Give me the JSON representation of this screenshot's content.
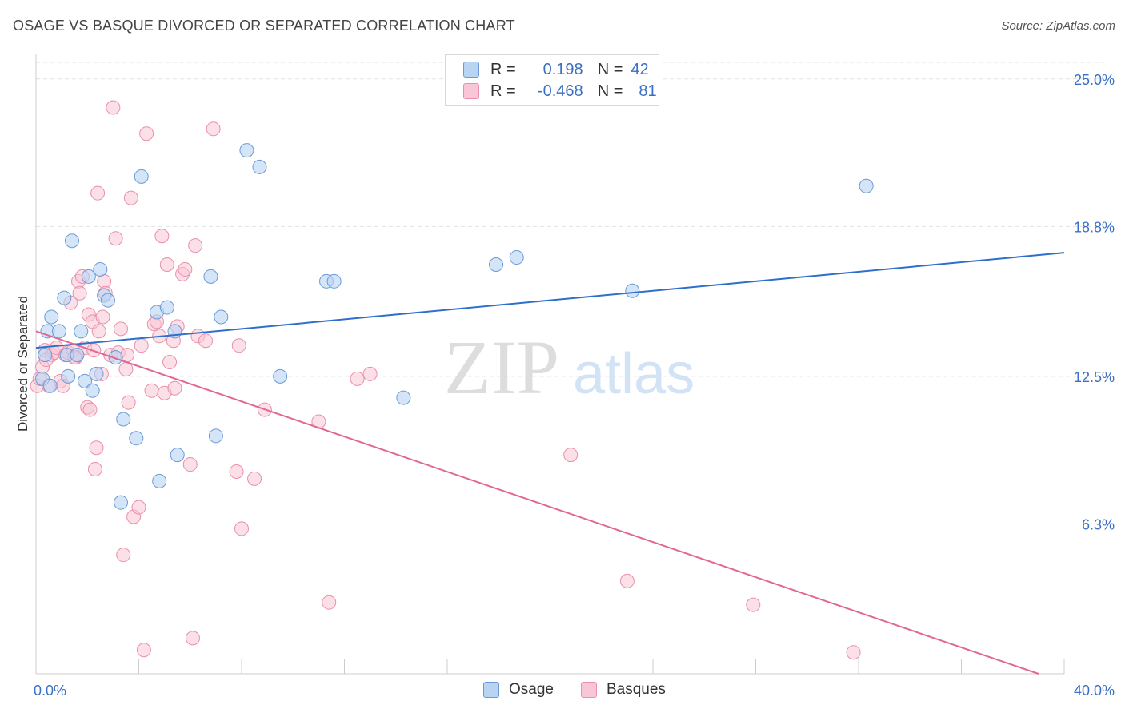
{
  "header": {
    "title": "OSAGE VS BASQUE DIVORCED OR SEPARATED CORRELATION CHART",
    "source": "Source: ZipAtlas.com"
  },
  "watermark": {
    "zip": "ZIP",
    "atlas": "atlas"
  },
  "legend": {
    "osage": {
      "r_label": "R =",
      "r_value": "0.198",
      "n_label": "N =",
      "n_value": "42"
    },
    "basques": {
      "r_label": "R =",
      "r_value": "-0.468",
      "n_label": "N =",
      "n_value": "81"
    }
  },
  "bottom_legend": {
    "osage": "Osage",
    "basques": "Basques"
  },
  "colors": {
    "osage_fill": "#b9d3f3",
    "osage_stroke": "#6a9bd8",
    "osage_line": "#2e6fcb",
    "basques_fill": "#f8c6d6",
    "basques_stroke": "#e98fac",
    "basques_line": "#e06892",
    "tick_label": "#3a6fc4",
    "grid": "#e2e2e2"
  },
  "chart_data": {
    "type": "scatter",
    "title": "OSAGE VS BASQUE DIVORCED OR SEPARATED CORRELATION CHART",
    "xlabel": "",
    "ylabel": "Divorced or Separated",
    "xlim": [
      0,
      40
    ],
    "ylim": [
      0,
      25.9
    ],
    "y_ticks": [
      6.3,
      12.5,
      18.8,
      25.0
    ],
    "y_tick_labels": [
      "6.3%",
      "12.5%",
      "18.8%",
      "25.0%"
    ],
    "x_tick_labels": [
      "0.0%",
      "40.0%"
    ],
    "series": [
      {
        "name": "Osage",
        "r": 0.198,
        "n": 42,
        "trend": {
          "x": [
            0.0,
            40.0
          ],
          "y": [
            13.7,
            17.7
          ]
        },
        "points": [
          [
            0.25,
            12.4
          ],
          [
            0.35,
            13.4
          ],
          [
            0.45,
            14.4
          ],
          [
            0.55,
            12.1
          ],
          [
            0.6,
            15.0
          ],
          [
            0.9,
            14.4
          ],
          [
            1.1,
            15.8
          ],
          [
            1.2,
            13.4
          ],
          [
            1.25,
            12.5
          ],
          [
            1.4,
            18.2
          ],
          [
            1.6,
            13.4
          ],
          [
            1.75,
            14.4
          ],
          [
            1.9,
            12.3
          ],
          [
            2.05,
            16.7
          ],
          [
            2.2,
            11.9
          ],
          [
            2.35,
            12.6
          ],
          [
            2.5,
            17.0
          ],
          [
            2.65,
            15.9
          ],
          [
            2.8,
            15.7
          ],
          [
            3.1,
            13.3
          ],
          [
            3.3,
            7.2
          ],
          [
            3.4,
            10.7
          ],
          [
            3.9,
            9.9
          ],
          [
            4.1,
            20.9
          ],
          [
            4.7,
            15.2
          ],
          [
            4.8,
            8.1
          ],
          [
            5.1,
            15.4
          ],
          [
            5.4,
            14.4
          ],
          [
            5.5,
            9.2
          ],
          [
            6.8,
            16.7
          ],
          [
            7.0,
            10.0
          ],
          [
            7.2,
            15.0
          ],
          [
            8.2,
            22.0
          ],
          [
            8.7,
            21.3
          ],
          [
            9.5,
            12.5
          ],
          [
            11.3,
            16.5
          ],
          [
            11.6,
            16.5
          ],
          [
            14.3,
            11.6
          ],
          [
            17.9,
            17.2
          ],
          [
            18.7,
            17.5
          ],
          [
            23.2,
            16.1
          ],
          [
            32.3,
            20.5
          ]
        ]
      },
      {
        "name": "Basques",
        "r": -0.468,
        "n": 81,
        "trend": {
          "x": [
            0.0,
            39.0
          ],
          "y": [
            14.4,
            0.0
          ]
        },
        "points": [
          [
            0.05,
            12.1
          ],
          [
            0.15,
            12.4
          ],
          [
            0.25,
            12.9
          ],
          [
            0.35,
            13.6
          ],
          [
            0.5,
            12.1
          ],
          [
            0.6,
            13.4
          ],
          [
            0.7,
            13.5
          ],
          [
            0.8,
            13.7
          ],
          [
            0.95,
            12.3
          ],
          [
            1.05,
            12.1
          ],
          [
            1.15,
            13.4
          ],
          [
            1.25,
            13.5
          ],
          [
            1.35,
            15.6
          ],
          [
            1.45,
            13.6
          ],
          [
            1.55,
            13.3
          ],
          [
            1.65,
            16.5
          ],
          [
            1.7,
            16.0
          ],
          [
            1.8,
            16.7
          ],
          [
            1.9,
            13.7
          ],
          [
            2.0,
            11.2
          ],
          [
            2.05,
            15.1
          ],
          [
            2.1,
            11.1
          ],
          [
            2.2,
            14.8
          ],
          [
            2.25,
            13.6
          ],
          [
            2.3,
            8.6
          ],
          [
            2.35,
            9.5
          ],
          [
            2.4,
            20.2
          ],
          [
            2.45,
            14.4
          ],
          [
            2.55,
            12.6
          ],
          [
            2.6,
            15.0
          ],
          [
            2.65,
            16.5
          ],
          [
            2.7,
            16.0
          ],
          [
            2.9,
            13.4
          ],
          [
            3.0,
            23.8
          ],
          [
            3.1,
            18.3
          ],
          [
            3.2,
            13.5
          ],
          [
            3.3,
            14.5
          ],
          [
            3.4,
            5.0
          ],
          [
            3.5,
            12.8
          ],
          [
            3.6,
            11.4
          ],
          [
            3.7,
            20.0
          ],
          [
            3.8,
            6.6
          ],
          [
            4.0,
            7.0
          ],
          [
            4.1,
            13.8
          ],
          [
            4.2,
            1.0
          ],
          [
            4.3,
            22.7
          ],
          [
            4.5,
            11.9
          ],
          [
            4.6,
            14.7
          ],
          [
            4.7,
            14.8
          ],
          [
            4.8,
            14.2
          ],
          [
            4.9,
            18.4
          ],
          [
            5.0,
            11.8
          ],
          [
            5.1,
            17.2
          ],
          [
            5.2,
            13.1
          ],
          [
            5.35,
            14.0
          ],
          [
            5.5,
            14.6
          ],
          [
            5.7,
            16.8
          ],
          [
            5.8,
            17.0
          ],
          [
            6.0,
            8.8
          ],
          [
            6.1,
            1.5
          ],
          [
            6.2,
            18.0
          ],
          [
            6.3,
            14.2
          ],
          [
            6.6,
            14.0
          ],
          [
            6.9,
            22.9
          ],
          [
            7.8,
            8.5
          ],
          [
            7.9,
            13.8
          ],
          [
            8.0,
            6.1
          ],
          [
            8.5,
            8.2
          ],
          [
            8.9,
            11.1
          ],
          [
            11.0,
            10.6
          ],
          [
            11.4,
            3.0
          ],
          [
            12.5,
            12.4
          ],
          [
            13.0,
            12.6
          ],
          [
            20.8,
            9.2
          ],
          [
            23.0,
            3.9
          ],
          [
            27.9,
            2.9
          ],
          [
            31.8,
            0.9
          ],
          [
            5.4,
            12.0
          ],
          [
            3.55,
            13.4
          ],
          [
            1.5,
            13.3
          ],
          [
            0.4,
            13.2
          ]
        ]
      }
    ]
  }
}
